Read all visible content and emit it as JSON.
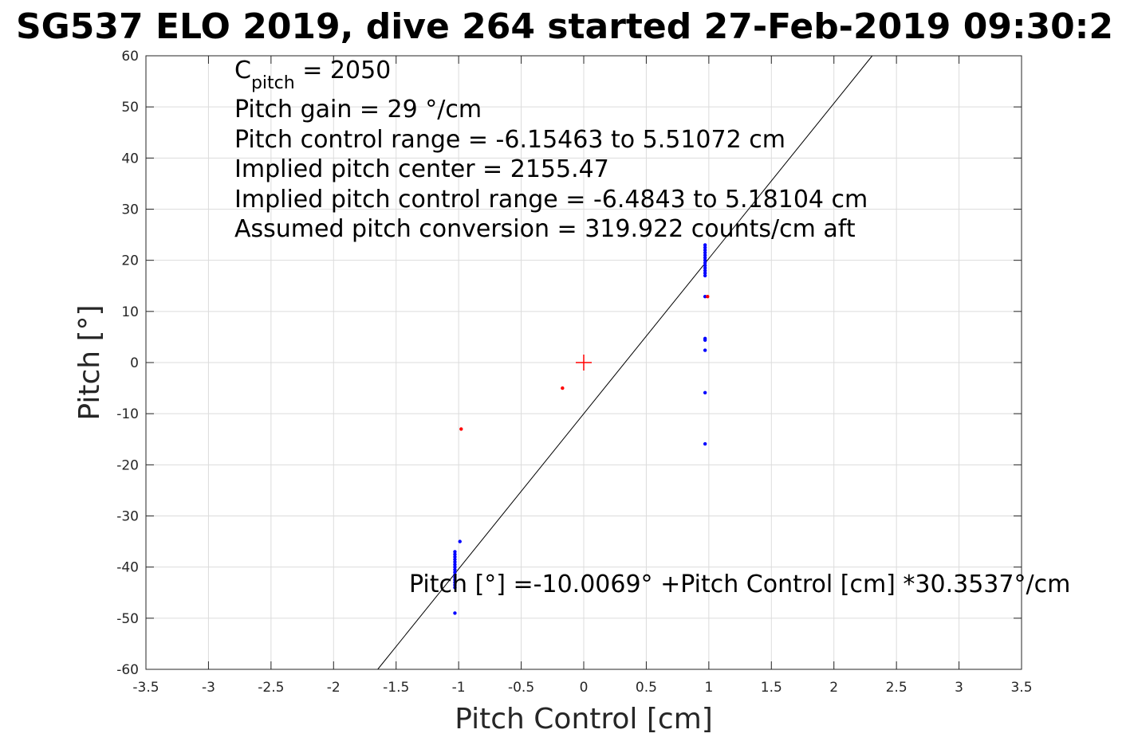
{
  "chart_data": {
    "type": "scatter",
    "title": "SG537 ELO 2019, dive 264 started 27-Feb-2019 09:30:2",
    "xlabel": "Pitch Control [cm]",
    "ylabel": "Pitch [°]",
    "xlim": [
      -3.5,
      3.5
    ],
    "ylim": [
      -60,
      60
    ],
    "xticks": [
      -3.5,
      -3,
      -2.5,
      -2,
      -1.5,
      -1,
      -0.5,
      0,
      0.5,
      1,
      1.5,
      2,
      2.5,
      3,
      3.5
    ],
    "xtick_labels": [
      "-3.5",
      "-3",
      "-2.5",
      "-2",
      "-1.5",
      "-1",
      "-0.5",
      "0",
      "0.5",
      "1",
      "1.5",
      "2",
      "2.5",
      "3",
      "3.5"
    ],
    "yticks": [
      60,
      50,
      40,
      30,
      20,
      10,
      0,
      -10,
      -20,
      -30,
      -40,
      -50,
      -60
    ],
    "ytick_labels": [
      "60",
      "50",
      "40",
      "30",
      "20",
      "10",
      "0",
      "-10",
      "-20",
      "-30",
      "-40",
      "-50",
      "-60"
    ],
    "grid": true,
    "colors": {
      "blue": "#0000ff",
      "red": "#ff0000",
      "fit": "#000000",
      "grid": "#dcdcdc"
    },
    "annotations": {
      "cpitch_symbol": "C",
      "cpitch_subscript": "pitch",
      "cpitch_value": " = 2050",
      "gain": "Pitch gain = 29 °/cm",
      "control_range": "Pitch control range = -6.15463 to 5.51072 cm",
      "implied_center": "Implied pitch center = 2155.47",
      "implied_range": "Implied pitch control range = -6.4843 to 5.18104 cm",
      "conversion": "Assumed pitch conversion = 319.922 counts/cm aft",
      "fit_equation": "Pitch [°] =-10.0069° +Pitch Control [cm] *30.3537°/cm"
    },
    "fit": {
      "intercept": -10.0069,
      "slope": 30.3537
    },
    "center_marker": {
      "x": 0,
      "y": 0
    },
    "series": [
      {
        "color": "#0000ff",
        "points": [
          [
            0.97,
            23.0
          ],
          [
            0.97,
            22.5
          ],
          [
            0.97,
            22.0
          ],
          [
            0.97,
            21.5
          ],
          [
            0.97,
            21.0
          ],
          [
            0.97,
            20.5
          ],
          [
            0.97,
            20.0
          ],
          [
            0.97,
            19.5
          ],
          [
            0.97,
            19.0
          ],
          [
            0.97,
            18.5
          ],
          [
            0.97,
            18.0
          ],
          [
            0.97,
            17.5
          ],
          [
            0.97,
            17.0
          ],
          [
            0.97,
            12.9
          ],
          [
            0.97,
            4.7
          ],
          [
            0.97,
            4.4
          ],
          [
            0.97,
            2.4
          ],
          [
            0.97,
            -5.9
          ],
          [
            0.97,
            -15.9
          ],
          [
            -1.03,
            -37.0
          ],
          [
            -1.03,
            -37.5
          ],
          [
            -1.03,
            -38.0
          ],
          [
            -1.03,
            -38.5
          ],
          [
            -1.03,
            -39.0
          ],
          [
            -1.03,
            -39.5
          ],
          [
            -1.03,
            -40.0
          ],
          [
            -1.03,
            -40.5
          ],
          [
            -1.03,
            -41.0
          ],
          [
            -1.03,
            -41.5
          ],
          [
            -1.03,
            -42.0
          ],
          [
            -1.03,
            -42.5
          ],
          [
            -1.03,
            -43.0
          ],
          [
            -1.03,
            -43.5
          ],
          [
            -1.03,
            -44.0
          ],
          [
            -0.99,
            -35.0
          ],
          [
            -1.03,
            -49.0
          ]
        ]
      },
      {
        "color": "#ff0000",
        "points": [
          [
            -0.98,
            -13.0
          ],
          [
            -0.17,
            -5.0
          ],
          [
            0.99,
            12.9
          ]
        ]
      }
    ]
  }
}
